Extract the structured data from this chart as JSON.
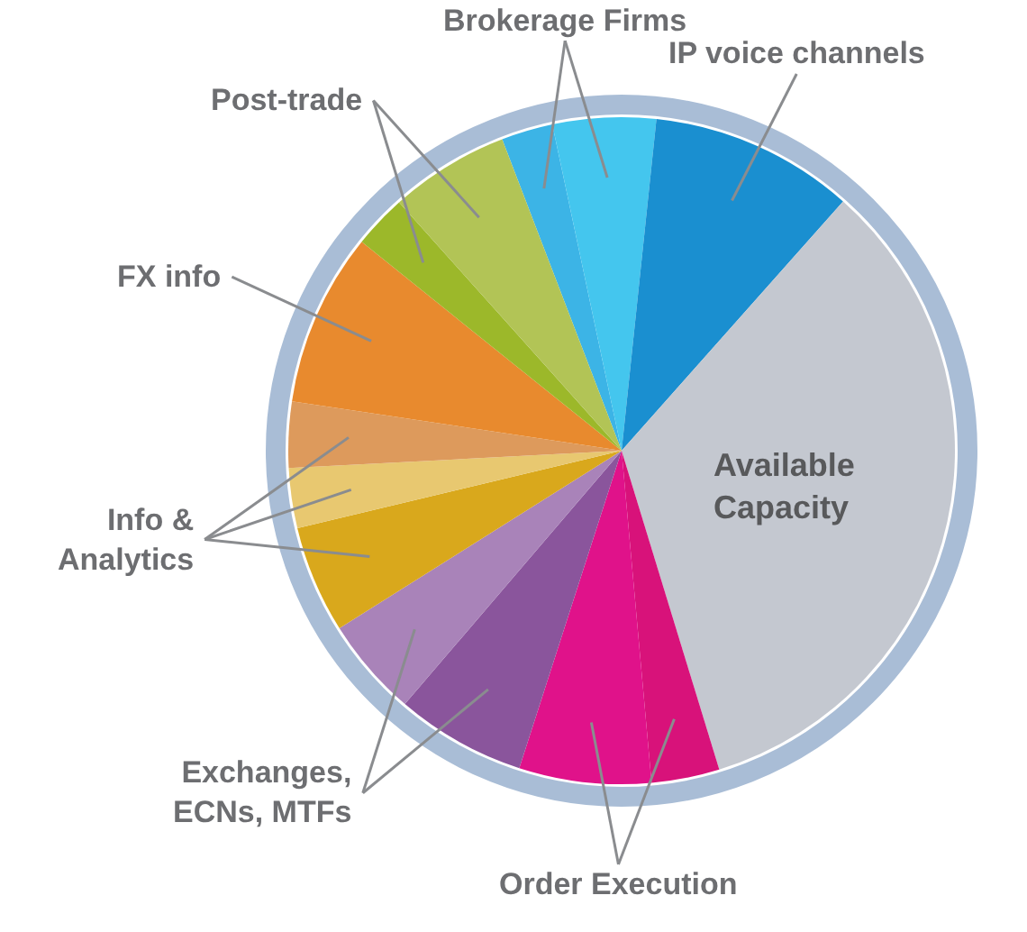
{
  "chart_data": {
    "type": "pie",
    "categories": [
      "Brokerage Firms",
      null,
      "IP voice channels",
      "Available\nCapacity",
      "Order Execution",
      null,
      "Exchanges,\nECNs, MTFs",
      null,
      "Info &\nAnalytics",
      null,
      null,
      "FX info",
      "Post-trade",
      null
    ],
    "values": [
      2.5,
      5.0,
      9.9,
      33.7,
      3.3,
      6.4,
      6.3,
      4.8,
      5.2,
      2.9,
      3.2,
      8.4,
      2.6,
      5.8
    ],
    "colors": [
      "#3cb4e6",
      "#44c6ee",
      "#1a8fd0",
      "#c4c8d0",
      "#d8127a",
      "#e0128a",
      "#8a559c",
      "#a983b9",
      "#d9a81c",
      "#e8c870",
      "#dd9a5c",
      "#e88a2e",
      "#9cb82a",
      "#b2c456"
    ]
  }
}
